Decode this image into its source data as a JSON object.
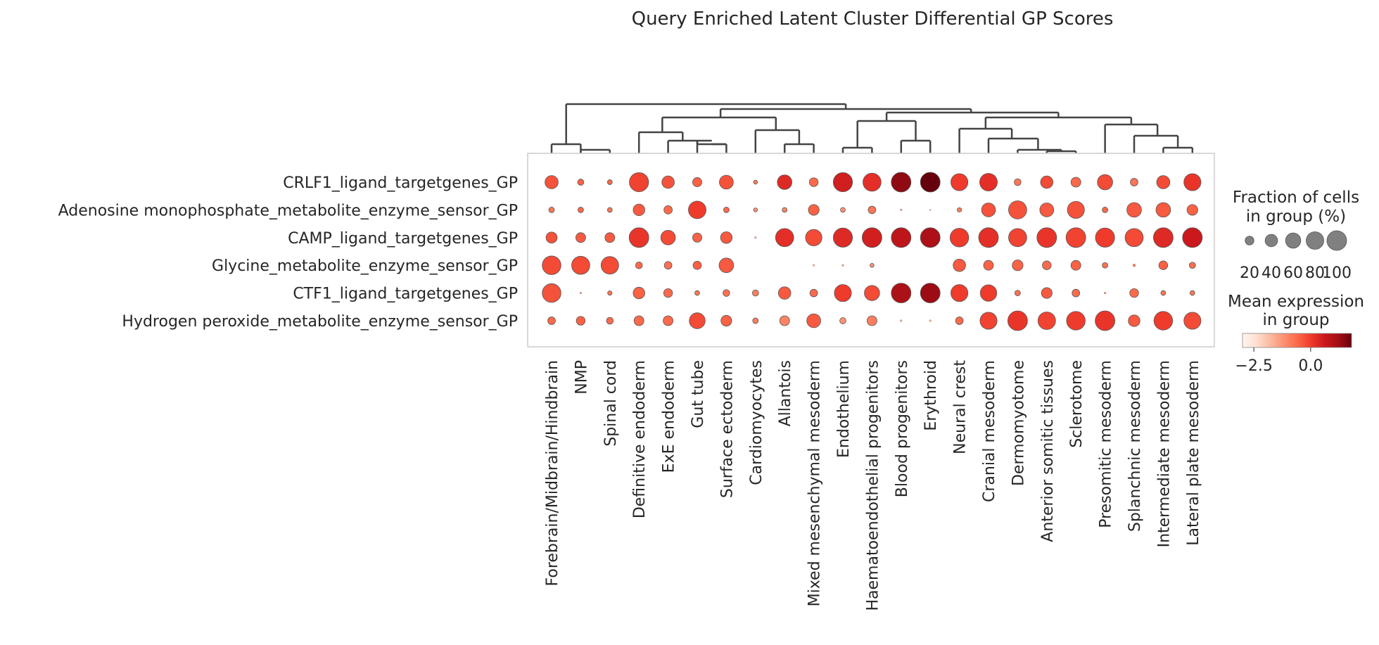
{
  "chart_data": {
    "type": "dotplot",
    "title": "Query Enriched Latent Cluster Differential GP Scores",
    "rows": [
      "CRLF1_ligand_targetgenes_GP",
      "Adenosine monophosphate_metabolite_enzyme_sensor_GP",
      "CAMP_ligand_targetgenes_GP",
      "Glycine_metabolite_enzyme_sensor_GP",
      "CTF1_ligand_targetgenes_GP",
      "Hydrogen peroxide_metabolite_enzyme_sensor_GP"
    ],
    "columns": [
      "Forebrain/Midbrain/Hindbrain",
      "NMP",
      "Spinal cord",
      "Definitive endoderm",
      "ExE endoderm",
      "Gut tube",
      "Surface ectoderm",
      "Cardiomyocytes",
      "Allantois",
      "Mixed mesenchymal mesoderm",
      "Endothelium",
      "Haematoendothelial progenitors",
      "Blood progenitors",
      "Erythroid",
      "Neural crest",
      "Cranial mesoderm",
      "Dermomyotome",
      "Anterior somitic tissues",
      "Sclerotome",
      "Presomitic mesoderm",
      "Splanchnic mesoderm",
      "Intermediate mesoderm",
      "Lateral plate mesoderm"
    ],
    "fraction": [
      [
        45,
        10,
        6,
        95,
        40,
        22,
        50,
        4,
        55,
        20,
        95,
        85,
        100,
        100,
        75,
        80,
        12,
        40,
        25,
        60,
        15,
        45,
        75
      ],
      [
        8,
        8,
        6,
        35,
        18,
        80,
        8,
        4,
        6,
        30,
        6,
        15,
        1,
        0.5,
        5,
        50,
        85,
        50,
        75,
        8,
        55,
        55,
        30
      ],
      [
        32,
        25,
        25,
        100,
        55,
        22,
        35,
        1,
        85,
        70,
        95,
        100,
        100,
        100,
        90,
        100,
        85,
        100,
        100,
        95,
        85,
        100,
        100
      ],
      [
        90,
        85,
        80,
        12,
        15,
        18,
        55,
        0,
        0,
        1,
        1,
        4,
        0,
        0,
        40,
        25,
        30,
        20,
        25,
        8,
        2,
        20,
        10
      ],
      [
        90,
        1,
        5,
        35,
        20,
        6,
        12,
        10,
        40,
        15,
        75,
        60,
        100,
        100,
        75,
        70,
        8,
        30,
        15,
        1,
        20,
        6,
        6
      ],
      [
        15,
        20,
        12,
        25,
        25,
        65,
        30,
        8,
        25,
        50,
        10,
        25,
        1,
        1,
        15,
        75,
        100,
        80,
        90,
        100,
        35,
        90,
        75
      ]
    ],
    "mean": [
      [
        -0.3,
        -0.5,
        -0.6,
        -0.1,
        -0.3,
        -0.5,
        -0.3,
        -0.9,
        0.3,
        -0.6,
        0.5,
        0.2,
        1.4,
        1.8,
        0.0,
        0.2,
        -0.8,
        -0.2,
        -0.6,
        -0.2,
        -0.8,
        -0.2,
        0.1
      ],
      [
        -0.8,
        -0.6,
        -0.8,
        -0.4,
        -0.6,
        0.0,
        -0.6,
        -1.2,
        -1.0,
        -0.5,
        -1.2,
        -0.8,
        -1.5,
        -1.6,
        -0.9,
        -0.3,
        -0.3,
        -0.4,
        -0.3,
        -0.6,
        -0.4,
        -0.4,
        -0.5
      ],
      [
        -0.3,
        -0.4,
        -0.4,
        0.1,
        -0.2,
        -0.5,
        -0.4,
        -1.5,
        0.2,
        -0.2,
        0.3,
        0.5,
        0.8,
        1.1,
        0.0,
        0.2,
        -0.1,
        0.1,
        -0.1,
        0.0,
        -0.2,
        0.3,
        0.6
      ],
      [
        -0.2,
        -0.2,
        -0.2,
        -0.6,
        -0.7,
        -0.5,
        -0.4,
        -2.0,
        -2.0,
        -1.8,
        -1.5,
        -1.2,
        -2.0,
        -2.0,
        -0.4,
        -0.5,
        -0.5,
        -0.6,
        -0.5,
        -0.7,
        -1.0,
        -0.5,
        -0.7
      ],
      [
        -0.3,
        -1.5,
        -0.8,
        -0.5,
        -0.6,
        -0.8,
        -0.7,
        -0.9,
        -0.4,
        -0.6,
        0.0,
        -0.2,
        1.1,
        1.3,
        0.0,
        0.0,
        -0.7,
        -0.4,
        -0.6,
        -1.2,
        -0.6,
        -0.8,
        -0.8
      ],
      [
        -0.6,
        -0.5,
        -0.6,
        -0.6,
        -0.6,
        -0.2,
        -0.5,
        -0.9,
        -1.0,
        -0.4,
        -1.2,
        -0.9,
        -1.5,
        -1.6,
        -0.6,
        -0.1,
        0.1,
        -0.1,
        0.0,
        0.1,
        -0.4,
        0.0,
        -0.2
      ]
    ],
    "size_legend": {
      "title_line1": "Fraction of cells",
      "title_line2": "in group (%)",
      "values": [
        20,
        40,
        60,
        80,
        100
      ],
      "tick_labels": [
        "20",
        "40",
        "60",
        "80",
        "100"
      ]
    },
    "color_legend": {
      "title_line1": "Mean expression",
      "title_line2": "in group",
      "vmin": -3.0,
      "vmax": 1.8,
      "tick_values": [
        -2.5,
        0.0
      ],
      "tick_labels": [
        "−2.5",
        "0.0"
      ],
      "colormap": "Reds"
    },
    "dendrogram": "hierarchical clustering over columns",
    "grid": false
  }
}
